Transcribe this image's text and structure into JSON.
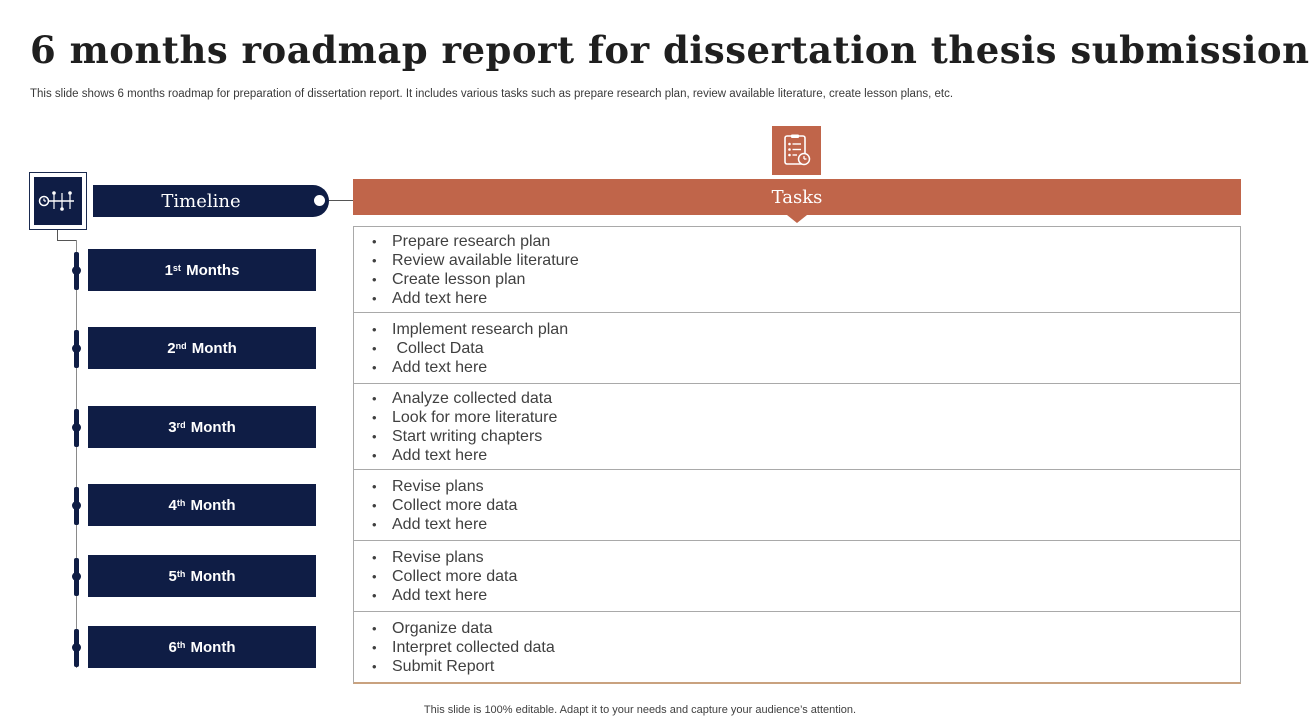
{
  "title": "6 months roadmap report for dissertation thesis submission",
  "subtitle": "This slide shows 6 months roadmap for preparation of dissertation report. It includes various tasks such as prepare research plan, review available literature, create lesson plans, etc.",
  "timeline": {
    "label": "Timeline",
    "icon": "timeline-icon",
    "months": [
      {
        "num": "1",
        "suffix": "st",
        "word": "Months"
      },
      {
        "num": "2",
        "suffix": "nd",
        "word": "Month"
      },
      {
        "num": "3",
        "suffix": "rd",
        "word": "Month"
      },
      {
        "num": "4",
        "suffix": "th",
        "word": "Month"
      },
      {
        "num": "5",
        "suffix": "th",
        "word": "Month"
      },
      {
        "num": "6",
        "suffix": "th",
        "word": "Month"
      }
    ]
  },
  "tasks": {
    "label": "Tasks",
    "icon": "checklist-icon",
    "groups": [
      [
        "Prepare research plan",
        "Review available literature",
        "Create lesson plan",
        "Add text here"
      ],
      [
        "Implement research plan",
        " Collect Data",
        "Add text here"
      ],
      [
        "Analyze collected data",
        "Look for more literature",
        "Start writing chapters",
        "Add text here"
      ],
      [
        "Revise plans",
        "Collect more data",
        "Add text here"
      ],
      [
        "Revise plans",
        "Collect more data",
        "Add text here"
      ],
      [
        "Organize data",
        "Interpret collected data",
        "Submit Report"
      ]
    ]
  },
  "footer": "This slide is 100% editable.  Adapt it to your needs and capture your audience’s attention.",
  "colors": {
    "navy": "#0f1d45",
    "accent": "#c0654a"
  }
}
